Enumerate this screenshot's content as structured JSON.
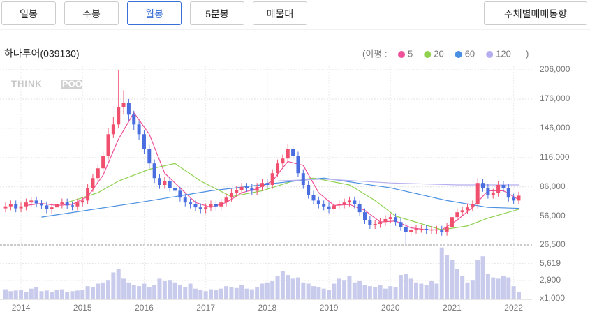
{
  "buttons": [
    "일봉",
    "주봉",
    "월봉",
    "5분봉",
    "매물대"
  ],
  "selected_button": 2,
  "side_button": "주체별매매동향",
  "chart_data": {
    "type": "candlestick",
    "title": "하나투어(039130)",
    "legend_title": "(이평 :",
    "legend_end": ")",
    "watermark": [
      "THINK",
      "POOL"
    ],
    "up_color": "#f0506e",
    "down_color": "#4a6ee0",
    "volume_color": "#c9cbec",
    "grid": true,
    "categories": [
      null,
      null,
      null,
      "2014",
      null,
      null,
      null,
      null,
      null,
      null,
      null,
      null,
      null,
      null,
      null,
      "2015",
      null,
      null,
      null,
      null,
      null,
      null,
      null,
      null,
      null,
      null,
      null,
      "2016",
      null,
      null,
      null,
      null,
      null,
      null,
      null,
      null,
      null,
      null,
      null,
      "2017",
      null,
      null,
      null,
      null,
      null,
      null,
      null,
      null,
      null,
      null,
      null,
      "2018",
      null,
      null,
      null,
      null,
      null,
      null,
      null,
      null,
      null,
      null,
      null,
      "2019",
      null,
      null,
      null,
      null,
      null,
      null,
      null,
      null,
      null,
      null,
      null,
      "2020",
      null,
      null,
      null,
      null,
      null,
      null,
      null,
      null,
      null,
      null,
      null,
      "2021",
      null,
      null,
      null,
      null,
      null,
      null,
      null,
      null,
      null,
      null,
      null,
      "2022",
      null
    ],
    "open": [
      64000,
      66000,
      68000,
      64000,
      66000,
      70000,
      72000,
      69000,
      67000,
      63000,
      65000,
      68000,
      70000,
      67000,
      66000,
      70000,
      72000,
      85000,
      95000,
      105000,
      118000,
      140000,
      150000,
      168000,
      172000,
      160000,
      150000,
      140000,
      125000,
      110000,
      95000,
      88000,
      92000,
      85000,
      82000,
      75000,
      70000,
      68000,
      65000,
      63000,
      65000,
      68000,
      66000,
      70000,
      75000,
      80000,
      83000,
      86000,
      85000,
      82000,
      86000,
      90000,
      88000,
      100000,
      110000,
      115000,
      125000,
      118000,
      100000,
      88000,
      78000,
      72000,
      68000,
      66000,
      63000,
      67000,
      68000,
      70000,
      72000,
      68000,
      60000,
      52000,
      47000,
      48000,
      50000,
      53000,
      55000,
      50000,
      45000,
      40000,
      42000,
      43000,
      43000,
      42000,
      42000,
      42000,
      40000,
      45000,
      55000,
      60000,
      62000,
      65000,
      68000,
      90000,
      85000,
      78000,
      80000,
      88000,
      85000,
      75000,
      72000
    ],
    "high": [
      70000,
      72000,
      72000,
      70000,
      74000,
      76000,
      76000,
      73000,
      71000,
      69000,
      72000,
      74000,
      74000,
      71000,
      74000,
      76000,
      89000,
      99000,
      109000,
      122000,
      146000,
      158000,
      206000,
      185000,
      176000,
      164000,
      154000,
      144000,
      129000,
      114000,
      99000,
      96000,
      96000,
      89000,
      86000,
      79000,
      74000,
      72000,
      69000,
      69000,
      72000,
      72000,
      74000,
      79000,
      84000,
      87000,
      90000,
      90000,
      89000,
      90000,
      94000,
      94000,
      104000,
      114000,
      119000,
      130000,
      128000,
      122000,
      104000,
      92000,
      82000,
      76000,
      72000,
      70000,
      71000,
      72000,
      74000,
      76000,
      76000,
      72000,
      64000,
      56000,
      52000,
      54000,
      57000,
      59000,
      59000,
      54000,
      49000,
      46000,
      47000,
      47000,
      47000,
      46000,
      46000,
      46000,
      49000,
      59000,
      64000,
      66000,
      69000,
      72000,
      95000,
      94000,
      89000,
      84000,
      92000,
      92000,
      89000,
      79000,
      81000
    ],
    "low": [
      60000,
      62000,
      60000,
      60000,
      62000,
      66000,
      65000,
      63000,
      59000,
      59000,
      61000,
      64000,
      63000,
      62000,
      62000,
      66000,
      68000,
      81000,
      91000,
      101000,
      114000,
      136000,
      146000,
      160000,
      154000,
      144000,
      134000,
      120000,
      105000,
      90000,
      84000,
      84000,
      81000,
      78000,
      71000,
      66000,
      64000,
      61000,
      59000,
      59000,
      61000,
      62000,
      62000,
      66000,
      71000,
      76000,
      79000,
      81000,
      78000,
      78000,
      82000,
      84000,
      84000,
      96000,
      106000,
      111000,
      114000,
      96000,
      84000,
      74000,
      68000,
      64000,
      62000,
      59000,
      59000,
      63000,
      64000,
      66000,
      64000,
      56000,
      48000,
      43000,
      43000,
      44000,
      46000,
      49000,
      46000,
      41000,
      28000,
      36000,
      38000,
      39000,
      38000,
      38000,
      38000,
      36000,
      36000,
      41000,
      51000,
      56000,
      58000,
      61000,
      64000,
      81000,
      74000,
      74000,
      76000,
      81000,
      71000,
      68000,
      68000
    ],
    "close": [
      66000,
      68000,
      64000,
      66000,
      70000,
      72000,
      69000,
      67000,
      63000,
      65000,
      68000,
      70000,
      67000,
      66000,
      70000,
      72000,
      85000,
      95000,
      105000,
      118000,
      140000,
      150000,
      168000,
      172000,
      160000,
      150000,
      140000,
      125000,
      110000,
      95000,
      88000,
      92000,
      85000,
      82000,
      75000,
      70000,
      68000,
      65000,
      63000,
      65000,
      68000,
      66000,
      70000,
      75000,
      80000,
      83000,
      86000,
      85000,
      82000,
      86000,
      90000,
      88000,
      100000,
      110000,
      115000,
      125000,
      118000,
      100000,
      88000,
      78000,
      72000,
      68000,
      66000,
      63000,
      67000,
      68000,
      70000,
      72000,
      68000,
      60000,
      52000,
      47000,
      48000,
      50000,
      53000,
      55000,
      50000,
      45000,
      40000,
      42000,
      43000,
      43000,
      42000,
      42000,
      42000,
      40000,
      45000,
      55000,
      60000,
      62000,
      65000,
      68000,
      90000,
      85000,
      78000,
      80000,
      88000,
      85000,
      75000,
      72000,
      77000
    ],
    "volume": [
      1500,
      1200,
      1300,
      1400,
      1100,
      1600,
      1800,
      1200,
      1300,
      1000,
      1400,
      1500,
      1100,
      1200,
      1300,
      1400,
      2000,
      1800,
      2400,
      2600,
      3000,
      4200,
      4800,
      3200,
      2600,
      2200,
      2000,
      2400,
      1800,
      2200,
      3200,
      2800,
      3000,
      2600,
      2200,
      1800,
      2400,
      1600,
      1400,
      1200,
      1500,
      1400,
      1600,
      2000,
      1800,
      1700,
      2200,
      1600,
      1500,
      1800,
      2400,
      2600,
      2800,
      3600,
      4400,
      3800,
      3200,
      3400,
      2600,
      2400,
      2000,
      1800,
      1600,
      1400,
      2400,
      3200,
      3000,
      3600,
      2600,
      2800,
      2200,
      2000,
      1800,
      2200,
      1600,
      2000,
      1800,
      3800,
      4000,
      3200,
      2600,
      2400,
      2200,
      2800,
      2400,
      8200,
      7000,
      6200,
      4800,
      3600,
      2600,
      3000,
      6200,
      6800,
      4000,
      3400,
      3200,
      3600,
      3400,
      2000,
      1000
    ],
    "series": [
      {
        "name": "5",
        "color": "#f0509a",
        "x": [
          4,
          7,
          10,
          13,
          16,
          19,
          22,
          25,
          28,
          31,
          34,
          37,
          40,
          43,
          46,
          49,
          52,
          55,
          58,
          61,
          64,
          67,
          70,
          73,
          76,
          79,
          82,
          85,
          88,
          91,
          94,
          97,
          100
        ],
        "values": [
          67000,
          69000,
          67000,
          68000,
          76000,
          98000,
          135000,
          162000,
          140000,
          100000,
          85000,
          70000,
          65000,
          70000,
          80000,
          84000,
          92000,
          112000,
          108000,
          80000,
          67000,
          68000,
          62000,
          50000,
          51000,
          44000,
          42000,
          42000,
          52000,
          65000,
          82000,
          82000,
          73000
        ]
      },
      {
        "name": "20",
        "color": "#8fd14f",
        "x": [
          12,
          18,
          22,
          28,
          33,
          38,
          44,
          50,
          56,
          60,
          67,
          72,
          76,
          85,
          90,
          94,
          100
        ],
        "values": [
          70000,
          80000,
          92000,
          104000,
          110000,
          92000,
          76000,
          82000,
          92000,
          95000,
          88000,
          72000,
          56000,
          42000,
          46000,
          54000,
          63000
        ]
      },
      {
        "name": "60",
        "color": "#4a90e2",
        "x": [
          7,
          26,
          40,
          53,
          62,
          75,
          86,
          94,
          100
        ],
        "values": [
          55000,
          70000,
          82000,
          90000,
          95000,
          85000,
          72000,
          65000,
          64000
        ]
      },
      {
        "name": "120",
        "color": "#b4aef0",
        "x": [
          53,
          62,
          75,
          88,
          100
        ],
        "values": [
          92000,
          94000,
          90000,
          88000,
          88000
        ]
      }
    ],
    "ylim": [
      26500,
      206000
    ],
    "yticks": [
      {
        "value": 206000,
        "label": "206,000"
      },
      {
        "value": 176000,
        "label": "176,000"
      },
      {
        "value": 146000,
        "label": "146,000"
      },
      {
        "value": 116000,
        "label": "116,000"
      },
      {
        "value": 86000,
        "label": "86,000"
      },
      {
        "value": 56000,
        "label": "56,000"
      },
      {
        "value": 26500,
        "label": "26,500"
      }
    ],
    "volume_ylim": [
      0,
      8500
    ],
    "volume_ticks": [
      {
        "value": 5619,
        "label": "5,619"
      },
      {
        "value": 2900,
        "label": "2,900"
      }
    ],
    "volume_unit": "x1,000"
  }
}
